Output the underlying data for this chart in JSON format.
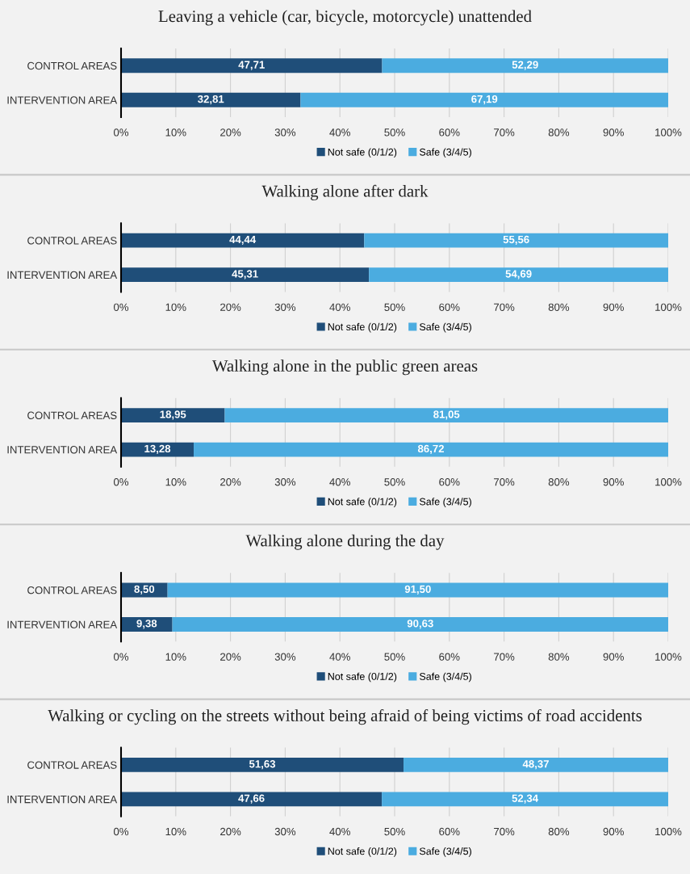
{
  "chart_data": [
    {
      "type": "bar",
      "orientation": "horizontal",
      "stacked": true,
      "title": "Leaving a vehicle (car, bicycle, motorcycle) unattended",
      "categories": [
        "CONTROL AREAS",
        "INTERVENTION AREA"
      ],
      "series": [
        {
          "name": "Not safe (0/1/2)",
          "color": "#1f4e79",
          "values": [
            47.71,
            32.81
          ],
          "value_labels": [
            "47,71",
            "32,81"
          ]
        },
        {
          "name": "Safe (3/4/5)",
          "color": "#4bace0",
          "values": [
            52.29,
            67.19
          ],
          "value_labels": [
            "52,29",
            "67,19"
          ]
        }
      ],
      "xlim": [
        0,
        100
      ],
      "xticks": [
        {
          "value": 0,
          "label": "0%"
        },
        {
          "value": 10,
          "label": "10%"
        },
        {
          "value": 20,
          "label": "20%"
        },
        {
          "value": 30,
          "label": "30%"
        },
        {
          "value": 40,
          "label": "40%"
        },
        {
          "value": 50,
          "label": "50%"
        },
        {
          "value": 60,
          "label": "60%"
        },
        {
          "value": 70,
          "label": "70%"
        },
        {
          "value": 80,
          "label": "80%"
        },
        {
          "value": 90,
          "label": "90%"
        },
        {
          "value": 100,
          "label": "100%"
        }
      ],
      "grid": "x",
      "legend": "bottom"
    },
    {
      "type": "bar",
      "orientation": "horizontal",
      "stacked": true,
      "title": "Walking alone after dark",
      "categories": [
        "CONTROL AREAS",
        "INTERVENTION AREA"
      ],
      "series": [
        {
          "name": "Not safe (0/1/2)",
          "color": "#1f4e79",
          "values": [
            44.44,
            45.31
          ],
          "value_labels": [
            "44,44",
            "45,31"
          ]
        },
        {
          "name": "Safe (3/4/5)",
          "color": "#4bace0",
          "values": [
            55.56,
            54.69
          ],
          "value_labels": [
            "55,56",
            "54,69"
          ]
        }
      ],
      "xlim": [
        0,
        100
      ],
      "xticks": [
        {
          "value": 0,
          "label": "0%"
        },
        {
          "value": 10,
          "label": "10%"
        },
        {
          "value": 20,
          "label": "20%"
        },
        {
          "value": 30,
          "label": "30%"
        },
        {
          "value": 40,
          "label": "40%"
        },
        {
          "value": 50,
          "label": "50%"
        },
        {
          "value": 60,
          "label": "60%"
        },
        {
          "value": 70,
          "label": "70%"
        },
        {
          "value": 80,
          "label": "80%"
        },
        {
          "value": 90,
          "label": "90%"
        },
        {
          "value": 100,
          "label": "100%"
        }
      ],
      "grid": "x",
      "legend": "bottom"
    },
    {
      "type": "bar",
      "orientation": "horizontal",
      "stacked": true,
      "title": "Walking alone in the public green areas",
      "categories": [
        "CONTROL AREAS",
        "INTERVENTION AREA"
      ],
      "series": [
        {
          "name": "Not safe (0/1/2)",
          "color": "#1f4e79",
          "values": [
            18.95,
            13.28
          ],
          "value_labels": [
            "18,95",
            "13,28"
          ]
        },
        {
          "name": "Safe (3/4/5)",
          "color": "#4bace0",
          "values": [
            81.05,
            86.72
          ],
          "value_labels": [
            "81,05",
            "86,72"
          ]
        }
      ],
      "xlim": [
        0,
        100
      ],
      "xticks": [
        {
          "value": 0,
          "label": "0%"
        },
        {
          "value": 10,
          "label": "10%"
        },
        {
          "value": 20,
          "label": "20%"
        },
        {
          "value": 30,
          "label": "30%"
        },
        {
          "value": 40,
          "label": "40%"
        },
        {
          "value": 50,
          "label": "50%"
        },
        {
          "value": 60,
          "label": "60%"
        },
        {
          "value": 70,
          "label": "70%"
        },
        {
          "value": 80,
          "label": "80%"
        },
        {
          "value": 90,
          "label": "90%"
        },
        {
          "value": 100,
          "label": "100%"
        }
      ],
      "grid": "x",
      "legend": "bottom"
    },
    {
      "type": "bar",
      "orientation": "horizontal",
      "stacked": true,
      "title": "Walking alone during the day",
      "categories": [
        "CONTROL AREAS",
        "INTERVENTION AREA"
      ],
      "series": [
        {
          "name": "Not safe (0/1/2)",
          "color": "#1f4e79",
          "values": [
            8.5,
            9.38
          ],
          "value_labels": [
            "8,50",
            "9,38"
          ]
        },
        {
          "name": "Safe (3/4/5)",
          "color": "#4bace0",
          "values": [
            91.5,
            90.63
          ],
          "value_labels": [
            "91,50",
            "90,63"
          ]
        }
      ],
      "xlim": [
        0,
        100
      ],
      "xticks": [
        {
          "value": 0,
          "label": "0%"
        },
        {
          "value": 10,
          "label": "10%"
        },
        {
          "value": 20,
          "label": "20%"
        },
        {
          "value": 30,
          "label": "30%"
        },
        {
          "value": 40,
          "label": "40%"
        },
        {
          "value": 50,
          "label": "50%"
        },
        {
          "value": 60,
          "label": "60%"
        },
        {
          "value": 70,
          "label": "70%"
        },
        {
          "value": 80,
          "label": "80%"
        },
        {
          "value": 90,
          "label": "90%"
        },
        {
          "value": 100,
          "label": "100%"
        }
      ],
      "grid": "x",
      "legend": "bottom"
    },
    {
      "type": "bar",
      "orientation": "horizontal",
      "stacked": true,
      "title": "Walking or cycling on the streets without being afraid of being victims of road accidents",
      "categories": [
        "CONTROL AREAS",
        "INTERVENTION AREA"
      ],
      "series": [
        {
          "name": "Not safe (0/1/2)",
          "color": "#1f4e79",
          "values": [
            51.63,
            47.66
          ],
          "value_labels": [
            "51,63",
            "47,66"
          ]
        },
        {
          "name": "Safe (3/4/5)",
          "color": "#4bace0",
          "values": [
            48.37,
            52.34
          ],
          "value_labels": [
            "48,37",
            "52,34"
          ]
        }
      ],
      "xlim": [
        0,
        100
      ],
      "xticks": [
        {
          "value": 0,
          "label": "0%"
        },
        {
          "value": 10,
          "label": "10%"
        },
        {
          "value": 20,
          "label": "20%"
        },
        {
          "value": 30,
          "label": "30%"
        },
        {
          "value": 40,
          "label": "40%"
        },
        {
          "value": 50,
          "label": "50%"
        },
        {
          "value": 60,
          "label": "60%"
        },
        {
          "value": 70,
          "label": "70%"
        },
        {
          "value": 80,
          "label": "80%"
        },
        {
          "value": 90,
          "label": "90%"
        },
        {
          "value": 100,
          "label": "100%"
        }
      ],
      "grid": "x",
      "legend": "bottom"
    }
  ]
}
